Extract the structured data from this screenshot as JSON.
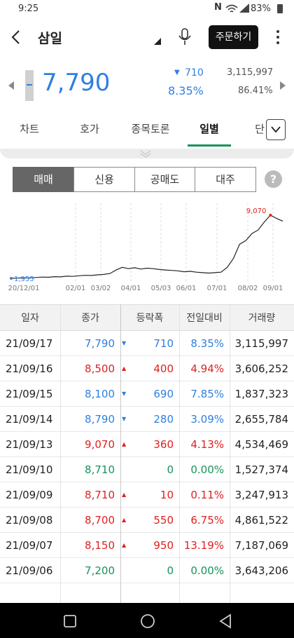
{
  "status": {
    "time": "9:25",
    "battery": "83%"
  },
  "header": {
    "title": "삼일",
    "order_button": "주문하기"
  },
  "quote": {
    "price": "7,790",
    "change": "710",
    "change_rate": "8.35%",
    "volume": "3,115,997",
    "ratio": "86.41%"
  },
  "tabs": [
    {
      "label": "차트"
    },
    {
      "label": "호가"
    },
    {
      "label": "종목토론"
    },
    {
      "label": "일별"
    },
    {
      "label": "단"
    }
  ],
  "subtabs": [
    {
      "label": "매매"
    },
    {
      "label": "신용"
    },
    {
      "label": "공매도"
    },
    {
      "label": "대주"
    }
  ],
  "help": "?",
  "chart_data": {
    "type": "line",
    "x_ticks": [
      "20/12/01",
      "02/01",
      "03/02",
      "04/01",
      "05/03",
      "06/01",
      "07/01",
      "08/02",
      "09/01"
    ],
    "min_label": "1,955",
    "max_label": "9,070",
    "series": [
      {
        "values": [
          1955,
          1980,
          2020,
          2000,
          2050,
          2100,
          2080,
          2150,
          2120,
          2200,
          2180,
          2250,
          2300,
          2280,
          2350,
          2400,
          2500,
          2900,
          3200,
          3050,
          3150,
          3000,
          3100,
          3050,
          2950,
          2900,
          2850,
          2800,
          2700,
          2750,
          2650,
          2600,
          2550,
          2600,
          2650,
          3200,
          4200,
          5800,
          6200,
          7000,
          7400,
          8300,
          9070,
          8700,
          8400
        ]
      }
    ]
  },
  "table": {
    "columns": [
      "일자",
      "종가",
      "등락폭",
      "전일대비",
      "거래량"
    ],
    "rows": [
      {
        "date": "21/09/17",
        "close": "7,790",
        "change": "710",
        "rate": "8.35%",
        "volume": "3,115,997",
        "dir": "down"
      },
      {
        "date": "21/09/16",
        "close": "8,500",
        "change": "400",
        "rate": "4.94%",
        "volume": "3,606,252",
        "dir": "up"
      },
      {
        "date": "21/09/15",
        "close": "8,100",
        "change": "690",
        "rate": "7.85%",
        "volume": "1,837,323",
        "dir": "down"
      },
      {
        "date": "21/09/14",
        "close": "8,790",
        "change": "280",
        "rate": "3.09%",
        "volume": "2,655,784",
        "dir": "down"
      },
      {
        "date": "21/09/13",
        "close": "9,070",
        "change": "360",
        "rate": "4.13%",
        "volume": "4,534,469",
        "dir": "up"
      },
      {
        "date": "21/09/10",
        "close": "8,710",
        "change": "0",
        "rate": "0.00%",
        "volume": "1,527,374",
        "dir": "flat"
      },
      {
        "date": "21/09/09",
        "close": "8,710",
        "change": "10",
        "rate": "0.11%",
        "volume": "3,247,913",
        "dir": "up"
      },
      {
        "date": "21/09/08",
        "close": "8,700",
        "change": "550",
        "rate": "6.75%",
        "volume": "4,861,522",
        "dir": "up"
      },
      {
        "date": "21/09/07",
        "close": "8,150",
        "change": "950",
        "rate": "13.19%",
        "volume": "7,187,069",
        "dir": "up"
      },
      {
        "date": "21/09/06",
        "close": "7,200",
        "change": "0",
        "rate": "0.00%",
        "volume": "3,643,206",
        "dir": "flat"
      }
    ]
  },
  "colors": {
    "up": "#e02020",
    "down": "#2f7fe0",
    "flat": "#17935a",
    "accent": "#17935a"
  }
}
